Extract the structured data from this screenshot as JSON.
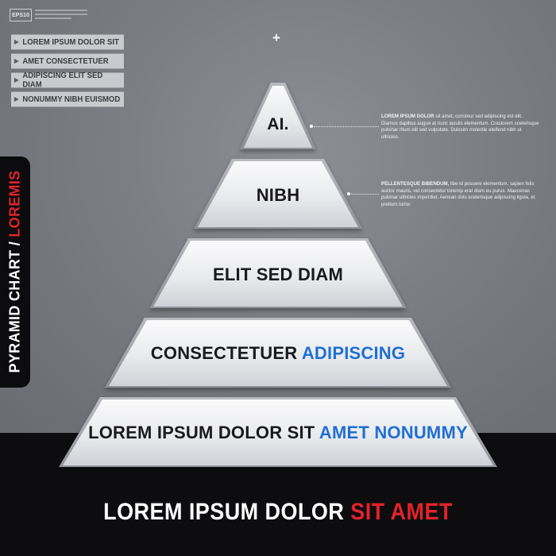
{
  "header": {
    "badge": "EPS10"
  },
  "menu": {
    "items": [
      {
        "label": "LOREM IPSUM DOLOR SIT"
      },
      {
        "label": "AMET CONSECTETUER"
      },
      {
        "label": "ADIPISCING ELIT SED DIAM"
      },
      {
        "label": "NONUMMY NIBH EUISMOD"
      }
    ]
  },
  "plus_symbol": "+",
  "side_tab": {
    "white_text": "PYRAMID CHART / ",
    "red_text": "LOREMIS"
  },
  "pyramid": {
    "tiers": [
      {
        "text": "AI.",
        "highlight": ""
      },
      {
        "text": "NIBH",
        "highlight": ""
      },
      {
        "text": "ELIT SED DIAM",
        "highlight": ""
      },
      {
        "text": "CONSECTETUER ",
        "highlight": "ADIPISCING"
      },
      {
        "text": "LOREM IPSUM DOLOR SIT ",
        "highlight": "AMET NONUMMY"
      }
    ]
  },
  "descriptions": [
    {
      "lead": "LOREM IPSUM DOLOR",
      "body": " sit amet, consteur sed adipiscing est elit. Diamus dapibus augue at nunc iaculis elementum. Crasiorem scelerisque pulvinar ritum elit sed vulputate. Duissim molestie eleifend nibh ut ultricies."
    },
    {
      "lead": "PELLENTESQUE BIBENDUM,",
      "body": " libe id posuere elementum, sapien felis auctor mauris, vel consectetur loremip erat diam eu purus. Maecenas pulvinar ultricies imperdiet. Aenean dolo scelerisque adipiscing ligula, et pretium tortor."
    }
  ],
  "headline": {
    "white_text": "LOREM IPSUM DOLOR ",
    "red_text": "SIT AMET"
  },
  "colors": {
    "background": "#7a7b80",
    "dark": "#0d0d0f",
    "accent_red": "#e3232b",
    "accent_blue": "#1f6fd6"
  }
}
